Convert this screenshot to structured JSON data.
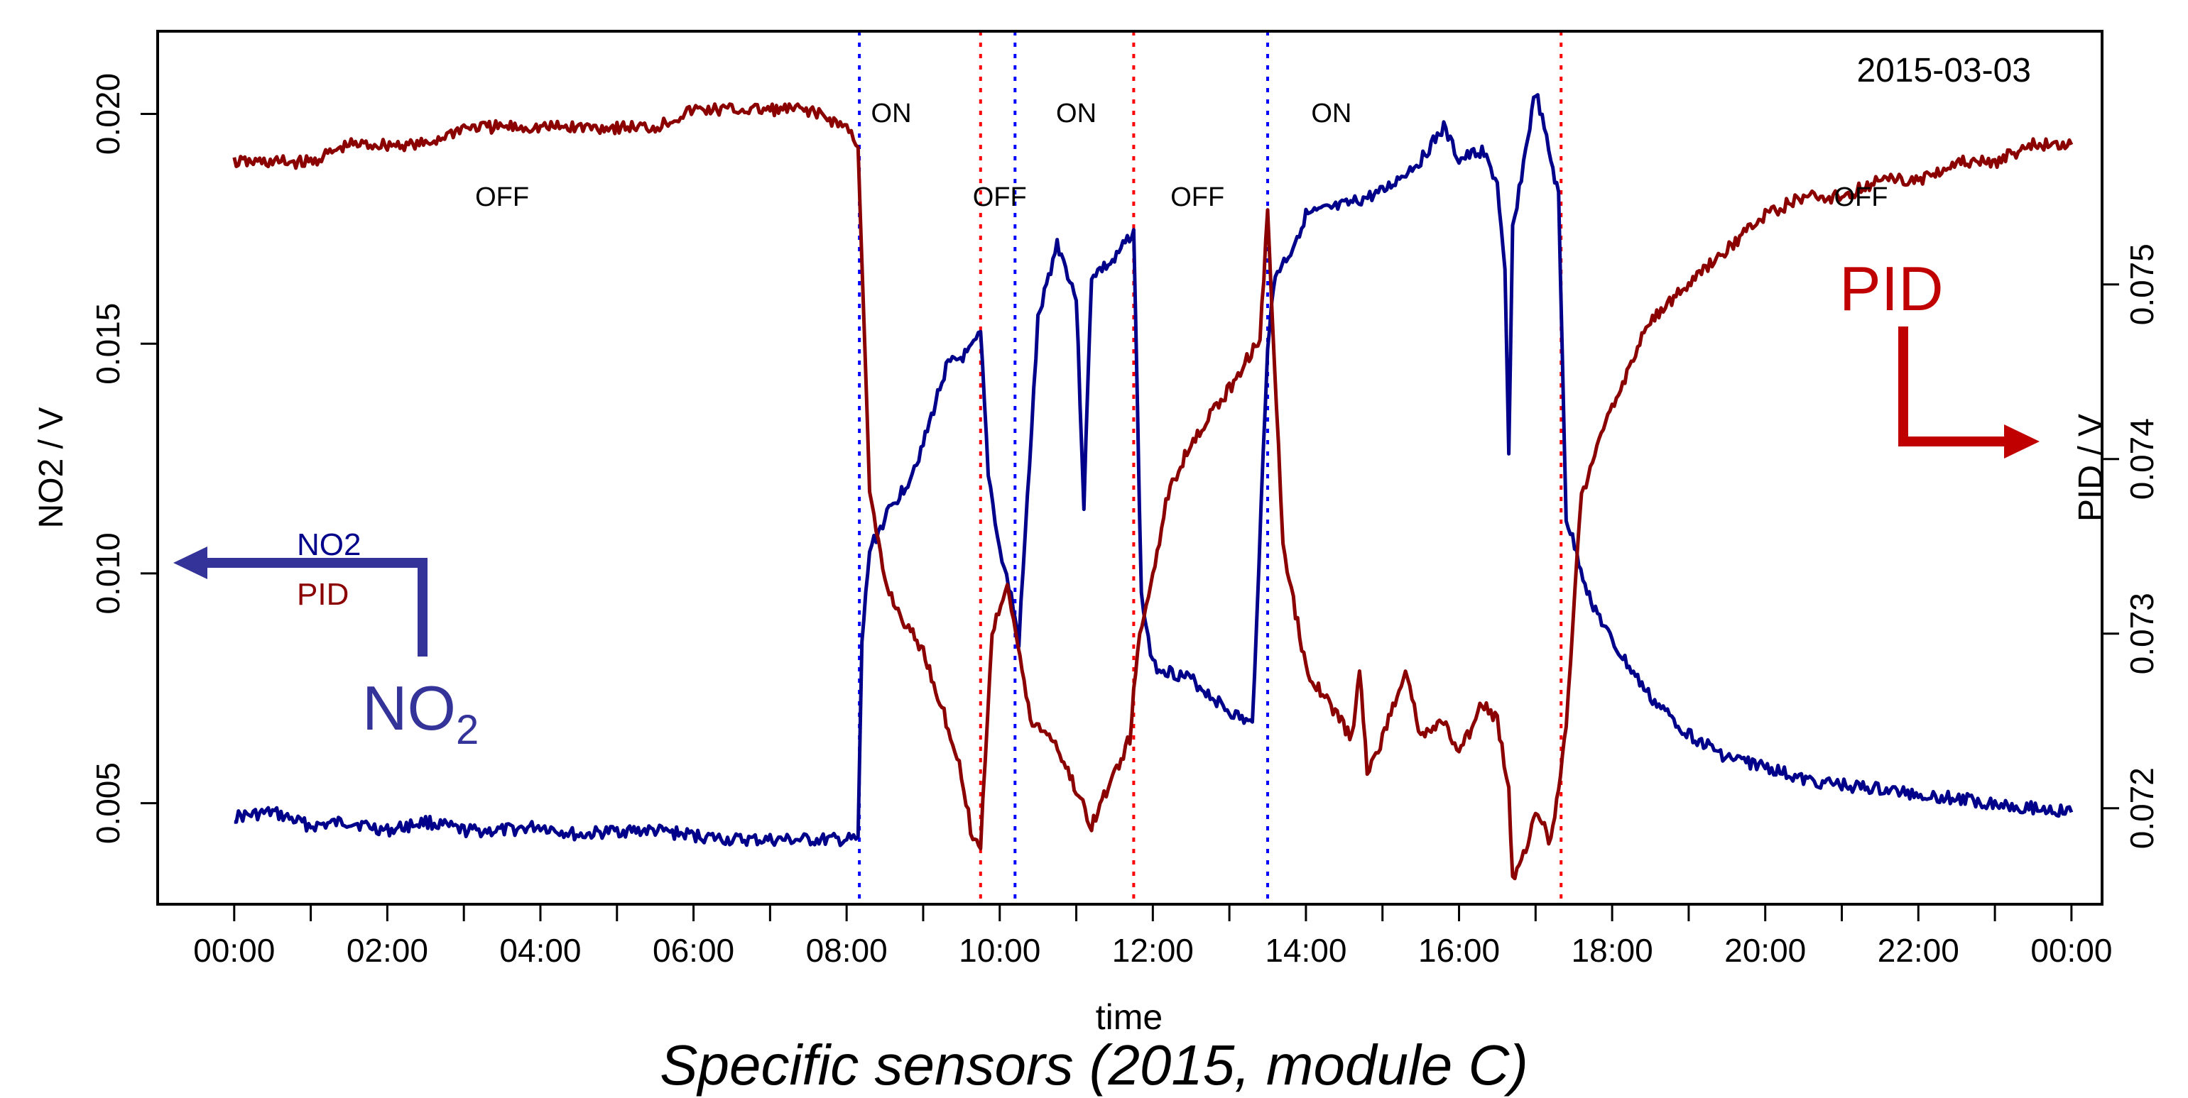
{
  "caption": "Specific sensors (2015, module C)",
  "chart_data": {
    "type": "line",
    "date_label": "2015-03-03",
    "xlabel": "time",
    "ylabel_left": "NO2 / V",
    "ylabel_right": "PID / V",
    "x_ticks": [
      "00:00",
      "02:00",
      "04:00",
      "06:00",
      "08:00",
      "10:00",
      "12:00",
      "14:00",
      "16:00",
      "18:00",
      "20:00",
      "22:00",
      "00:00"
    ],
    "x_range_hours": [
      -1,
      24.4
    ],
    "y_left_range": [
      0.0028,
      0.0218
    ],
    "y_left_ticks": [
      "0.005",
      "0.010",
      "0.015",
      "0.020"
    ],
    "y_right_range": [
      0.07145,
      0.07645
    ],
    "y_right_ticks": [
      "0.072",
      "0.073",
      "0.074",
      "0.075"
    ],
    "legend": [
      {
        "label": "NO2",
        "color": "#00008b"
      },
      {
        "label": "PID",
        "color": "#8b0000"
      }
    ],
    "arrow_labels": {
      "no2": "NO2",
      "pid": "PID"
    },
    "switch_lines": [
      {
        "time": "08:10",
        "color": "#0000ff"
      },
      {
        "time": "09:45",
        "color": "#ff0000"
      },
      {
        "time": "10:12",
        "color": "#0000ff"
      },
      {
        "time": "11:45",
        "color": "#ff0000"
      },
      {
        "time": "13:30",
        "color": "#0000ff"
      },
      {
        "time": "17:20",
        "color": "#ff0000"
      }
    ],
    "state_labels": [
      {
        "text": "OFF",
        "time": "03:30",
        "row": "lower"
      },
      {
        "text": "ON",
        "time": "08:35",
        "row": "upper"
      },
      {
        "text": "OFF",
        "time": "10:00",
        "row": "lower"
      },
      {
        "text": "ON",
        "time": "11:00",
        "row": "upper"
      },
      {
        "text": "OFF",
        "time": "12:35",
        "row": "lower"
      },
      {
        "text": "ON",
        "time": "14:20",
        "row": "upper"
      },
      {
        "text": "OFF",
        "time": "21:15",
        "row": "lower"
      }
    ],
    "series": [
      {
        "name": "NO2",
        "axis": "left",
        "color": "#00008b",
        "x": [
          0,
          0.5,
          1,
          1.5,
          2,
          2.5,
          3,
          3.5,
          4,
          4.5,
          5,
          5.5,
          6,
          6.5,
          7,
          7.5,
          8,
          8.15,
          8.2,
          8.3,
          8.5,
          8.8,
          9.0,
          9.3,
          9.6,
          9.75,
          9.85,
          10.0,
          10.15,
          10.25,
          10.5,
          10.75,
          11.0,
          11.1,
          11.2,
          11.5,
          11.75,
          11.85,
          12.0,
          12.5,
          13.0,
          13.3,
          13.5,
          13.6,
          13.8,
          14.0,
          14.5,
          15.0,
          15.5,
          15.8,
          16.0,
          16.3,
          16.5,
          16.6,
          16.65,
          16.7,
          16.9,
          17.0,
          17.2,
          17.3,
          17.4,
          17.7,
          18.0,
          18.5,
          19.0,
          19.5,
          20.0,
          20.5,
          21.0,
          21.5,
          22.0,
          22.5,
          23.0,
          23.5,
          24.0
        ],
        "values": [
          0.0047,
          0.0048,
          0.0045,
          0.0046,
          0.0044,
          0.0046,
          0.0044,
          0.0044,
          0.0045,
          0.0043,
          0.0044,
          0.0044,
          0.0043,
          0.0042,
          0.0042,
          0.0042,
          0.0042,
          0.0042,
          0.0085,
          0.0105,
          0.0112,
          0.012,
          0.0128,
          0.0145,
          0.0148,
          0.0152,
          0.0122,
          0.0105,
          0.0095,
          0.0085,
          0.0155,
          0.0172,
          0.016,
          0.0115,
          0.0165,
          0.0168,
          0.0175,
          0.0095,
          0.008,
          0.0077,
          0.007,
          0.0067,
          0.015,
          0.0165,
          0.017,
          0.0178,
          0.018,
          0.0183,
          0.019,
          0.0197,
          0.019,
          0.0192,
          0.0185,
          0.0165,
          0.0125,
          0.0175,
          0.0195,
          0.0205,
          0.019,
          0.0182,
          0.0112,
          0.0095,
          0.0085,
          0.0073,
          0.0065,
          0.006,
          0.0058,
          0.0055,
          0.0054,
          0.0053,
          0.0052,
          0.0051,
          0.005,
          0.0049,
          0.0048
        ]
      },
      {
        "name": "PID",
        "axis": "right",
        "color": "#8b0000",
        "x": [
          0,
          0.5,
          1,
          1.5,
          2,
          2.5,
          3,
          3.5,
          4,
          4.5,
          5,
          5.5,
          6,
          6.5,
          7,
          7.5,
          8,
          8.15,
          8.3,
          8.5,
          8.7,
          9.0,
          9.3,
          9.5,
          9.65,
          9.75,
          9.9,
          10.1,
          10.4,
          10.7,
          11.0,
          11.2,
          11.5,
          11.7,
          11.8,
          12.2,
          12.5,
          13.0,
          13.4,
          13.5,
          13.7,
          14.0,
          14.3,
          14.6,
          14.7,
          14.8,
          15.0,
          15.3,
          15.5,
          15.8,
          16.0,
          16.3,
          16.5,
          16.65,
          16.7,
          16.9,
          17.0,
          17.2,
          17.3,
          17.4,
          17.6,
          18.0,
          18.5,
          19.0,
          19.5,
          20.0,
          20.5,
          21.0,
          21.5,
          22.0,
          22.5,
          23.0,
          23.5,
          24.0
        ],
        "values": [
          0.0757,
          0.0757,
          0.0757,
          0.0758,
          0.0758,
          0.0758,
          0.0759,
          0.0759,
          0.0759,
          0.0759,
          0.0759,
          0.0759,
          0.076,
          0.076,
          0.076,
          0.076,
          0.0759,
          0.0758,
          0.0738,
          0.0733,
          0.0731,
          0.0729,
          0.0725,
          0.0722,
          0.0718,
          0.0718,
          0.073,
          0.0733,
          0.0725,
          0.0724,
          0.0721,
          0.0719,
          0.0722,
          0.0724,
          0.0729,
          0.0738,
          0.0741,
          0.0744,
          0.0747,
          0.0754,
          0.0735,
          0.0728,
          0.0726,
          0.0724,
          0.0728,
          0.0722,
          0.0724,
          0.0728,
          0.0724,
          0.0725,
          0.0723,
          0.0726,
          0.0725,
          0.0721,
          0.0716,
          0.0718,
          0.072,
          0.0718,
          0.0721,
          0.0725,
          0.0738,
          0.0743,
          0.0748,
          0.075,
          0.0752,
          0.0754,
          0.0755,
          0.0755,
          0.0756,
          0.0756,
          0.0757,
          0.0757,
          0.0758,
          0.0758
        ]
      }
    ]
  }
}
